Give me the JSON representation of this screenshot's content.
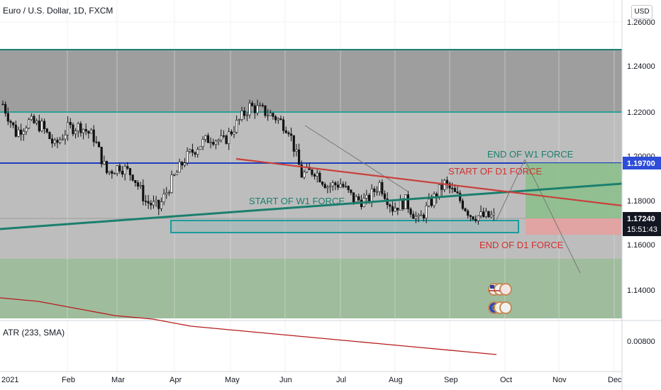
{
  "title": "Euro / U.S. Dollar, 1D, FXCM",
  "currency": "USD",
  "indicator_title": "ATR (233, SMA)",
  "price_axis": {
    "ticks": [
      "1.26000",
      "1.24000",
      "1.22000",
      "1.20000",
      "1.18000",
      "1.16000",
      "1.14000"
    ]
  },
  "atr_axis": {
    "ticks": [
      "0.00800"
    ]
  },
  "time_axis": {
    "labels": [
      "2021",
      "Feb",
      "Mar",
      "Apr",
      "May",
      "Jun",
      "Jul",
      "Aug",
      "Sep",
      "Oct",
      "Nov",
      "Dec"
    ]
  },
  "badges": {
    "level": "1.19700",
    "last_price": "1.17240",
    "countdown": "15:51:43"
  },
  "annotations": {
    "end_w1": "END OF W1 FORCE",
    "start_d1": "START OF D1 FORCE",
    "start_w1": "START OF W1 FORCE",
    "end_d1": "END OF D1 FORCE"
  },
  "colors": {
    "teal_line": "#1b7f6e",
    "blue_line": "#1f3fbf",
    "red_line": "#d2302f",
    "candle": "#111111",
    "atr_line": "#b71c1c",
    "zone_grey": "#bdbdbd",
    "zone_dark": "#9e9e9e",
    "zone_green": "#9fbc9d",
    "profit_green": "#8cbf8c",
    "loss_red": "#e6a0a0",
    "badge_blue": "#2e4dd8"
  },
  "chart_data": {
    "type": "candlestick",
    "title": "Euro / U.S. Dollar, 1D, FXCM",
    "ylim": [
      1.128,
      1.268
    ],
    "x": [
      "2021-01-04",
      "2021-01-11",
      "2021-01-18",
      "2021-01-25",
      "2021-02-01",
      "2021-02-08",
      "2021-02-15",
      "2021-02-22",
      "2021-03-01",
      "2021-03-08",
      "2021-03-15",
      "2021-03-22",
      "2021-03-29",
      "2021-04-05",
      "2021-04-12",
      "2021-04-19",
      "2021-04-26",
      "2021-05-03",
      "2021-05-10",
      "2021-05-17",
      "2021-05-24",
      "2021-05-31",
      "2021-06-07",
      "2021-06-14",
      "2021-06-21",
      "2021-06-28",
      "2021-07-05",
      "2021-07-12",
      "2021-07-19",
      "2021-07-26",
      "2021-08-02",
      "2021-08-09",
      "2021-08-16",
      "2021-08-23",
      "2021-08-30",
      "2021-09-06",
      "2021-09-13",
      "2021-09-20"
    ],
    "close_levels": [
      1.223,
      1.21,
      1.215,
      1.213,
      1.204,
      1.212,
      1.213,
      1.208,
      1.192,
      1.195,
      1.191,
      1.179,
      1.176,
      1.188,
      1.198,
      1.204,
      1.208,
      1.206,
      1.214,
      1.222,
      1.22,
      1.217,
      1.212,
      1.191,
      1.193,
      1.186,
      1.187,
      1.18,
      1.179,
      1.187,
      1.176,
      1.179,
      1.17,
      1.179,
      1.187,
      1.181,
      1.173,
      1.172
    ],
    "horizontal_levels": [
      {
        "price": 1.248,
        "label": ""
      },
      {
        "price": 1.22,
        "label": ""
      },
      {
        "price": 1.197,
        "label": "1.19700"
      }
    ],
    "zones": [
      {
        "from": 1.22,
        "to": 1.248
      },
      {
        "from": 1.155,
        "to": 1.22
      },
      {
        "from": 1.131,
        "to": 1.155
      }
    ],
    "atr": {
      "name": "ATR (233, SMA)",
      "values": [
        0.0093,
        0.0092,
        0.009,
        0.0088,
        0.0087,
        0.0085,
        0.0084,
        0.0083,
        0.0082,
        0.0081,
        0.008,
        0.0079,
        0.0078,
        0.0077
      ]
    }
  }
}
